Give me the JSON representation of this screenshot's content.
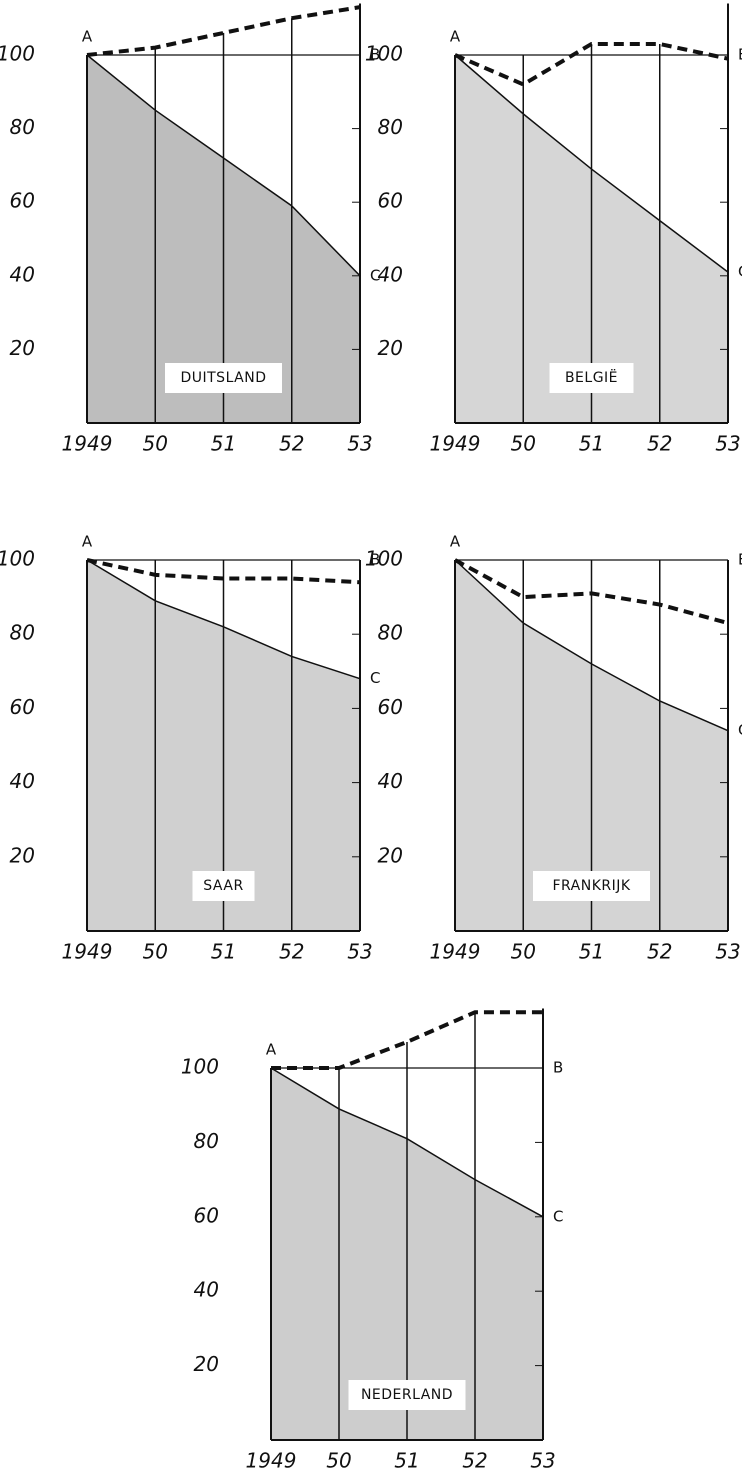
{
  "chart_data": [
    {
      "type": "line",
      "title": "DUITSLAND",
      "categories": [
        "1949",
        "50",
        "51",
        "52",
        "53"
      ],
      "series": [
        {
          "color": "#111111",
          "style": "solid",
          "fill": "#bdbdbd",
          "values": [
            100,
            85,
            72,
            59,
            40
          ]
        },
        {
          "color": "#111111",
          "style": "dashed",
          "values": [
            100,
            102,
            106,
            110,
            113
          ]
        }
      ],
      "annotations": [
        "A",
        "B",
        "C"
      ],
      "ylim": [
        0,
        114
      ],
      "yticks": [
        20,
        40,
        60,
        80,
        100
      ]
    },
    {
      "type": "line",
      "title": "BELGIË",
      "categories": [
        "1949",
        "50",
        "51",
        "52",
        "53"
      ],
      "series": [
        {
          "color": "#111111",
          "style": "solid",
          "fill": "#d6d6d6",
          "values": [
            100,
            84,
            69,
            55,
            41
          ]
        },
        {
          "color": "#111111",
          "style": "dashed",
          "values": [
            100,
            92,
            103,
            103,
            99
          ]
        }
      ],
      "annotations": [
        "A",
        "B",
        "C"
      ],
      "ylim": [
        0,
        114
      ],
      "yticks": [
        20,
        40,
        60,
        80,
        100
      ]
    },
    {
      "type": "line",
      "title": "SAAR",
      "categories": [
        "1949",
        "50",
        "51",
        "52",
        "53"
      ],
      "series": [
        {
          "color": "#111111",
          "style": "solid",
          "fill": "#d0d0d0",
          "values": [
            100,
            89,
            82,
            74,
            68
          ]
        },
        {
          "color": "#111111",
          "style": "dashed",
          "values": [
            100,
            96,
            95,
            95,
            94
          ]
        }
      ],
      "annotations": [
        "A",
        "B",
        "C"
      ],
      "ylim": [
        0,
        100
      ],
      "yticks": [
        20,
        40,
        60,
        80,
        100
      ]
    },
    {
      "type": "line",
      "title": "FRANKRIJK",
      "categories": [
        "1949",
        "50",
        "51",
        "52",
        "53"
      ],
      "series": [
        {
          "color": "#111111",
          "style": "solid",
          "fill": "#d4d4d4",
          "values": [
            100,
            83,
            72,
            62,
            54
          ]
        },
        {
          "color": "#111111",
          "style": "dashed",
          "values": [
            100,
            90,
            91,
            88,
            83
          ]
        }
      ],
      "annotations": [
        "A",
        "B",
        "C"
      ],
      "ylim": [
        0,
        100
      ],
      "yticks": [
        20,
        40,
        60,
        80,
        100
      ]
    },
    {
      "type": "line",
      "title": "NEDERLAND",
      "categories": [
        "1949",
        "50",
        "51",
        "52",
        "53"
      ],
      "series": [
        {
          "color": "#111111",
          "style": "solid",
          "fill": "#cdcdcd",
          "values": [
            100,
            89,
            81,
            70,
            60
          ]
        },
        {
          "color": "#111111",
          "style": "dashed",
          "values": [
            100,
            100,
            107,
            115,
            115
          ]
        }
      ],
      "annotations": [
        "A",
        "B",
        "C"
      ],
      "ylim": [
        0,
        116
      ],
      "yticks": [
        20,
        40,
        60,
        80,
        100
      ]
    }
  ]
}
